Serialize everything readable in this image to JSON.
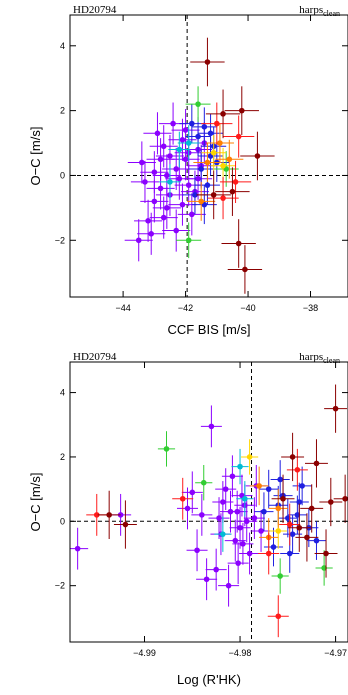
{
  "chart_data": [
    {
      "type": "scatter",
      "corner_left": "HD20794",
      "corner_right_main": "harps",
      "corner_right_sub": "clean",
      "xlabel": "CCF BIS [m/s]",
      "ylabel": "O−C [m/s]",
      "xlim": [
        -45.7,
        -36.8
      ],
      "ylim": [
        -3.75,
        4.95
      ],
      "xticks": [
        -44,
        -42,
        -40,
        -38
      ],
      "xtick_labels": [
        "−44",
        "−42",
        "−40",
        "−38"
      ],
      "yticks": [
        -2,
        0,
        2,
        4
      ],
      "ytick_labels": [
        "−2",
        "0",
        "2",
        "4"
      ],
      "vline": -41.95,
      "hline": 0,
      "grid": false,
      "legend": "none",
      "series": [
        {
          "color": "#8b00ff",
          "xerr": 0.45,
          "yerr": 0.65,
          "points": [
            [
              -42.3,
              0.2
            ],
            [
              -42.8,
              0.5
            ],
            [
              -41.9,
              -0.3
            ],
            [
              -42.5,
              -0.6
            ],
            [
              -43.0,
              0.1
            ],
            [
              -41.6,
              0.8
            ],
            [
              -42.1,
              1.1
            ],
            [
              -42.6,
              -1.0
            ],
            [
              -43.2,
              -1.4
            ],
            [
              -41.8,
              -1.2
            ],
            [
              -42.9,
              1.3
            ],
            [
              -42.2,
              -0.1
            ],
            [
              -41.5,
              0.3
            ],
            [
              -42.7,
              0.9
            ],
            [
              -43.4,
              0.4
            ],
            [
              -42.0,
              0.5
            ],
            [
              -41.7,
              -0.5
            ],
            [
              -42.4,
              1.6
            ],
            [
              -43.0,
              -0.8
            ],
            [
              -42.3,
              -1.7
            ],
            [
              -42.6,
              0.0
            ],
            [
              -41.9,
              0.7
            ],
            [
              -43.3,
              -0.2
            ],
            [
              -42.1,
              -0.9
            ],
            [
              -42.8,
              -0.4
            ],
            [
              -41.6,
              -0.1
            ],
            [
              -42.5,
              0.6
            ],
            [
              -43.5,
              -2.0
            ],
            [
              -43.1,
              -1.8
            ],
            [
              -41.4,
              1.0
            ],
            [
              -42.0,
              1.4
            ],
            [
              -42.7,
              -1.3
            ]
          ]
        },
        {
          "color": "#1f1fe0",
          "xerr": 0.4,
          "yerr": 0.6,
          "points": [
            [
              -41.4,
              1.5
            ],
            [
              -41.6,
              1.2
            ],
            [
              -41.2,
              0.6
            ],
            [
              -41.5,
              0.2
            ],
            [
              -41.3,
              -0.3
            ],
            [
              -41.7,
              -0.6
            ],
            [
              -41.1,
              0.9
            ],
            [
              -41.8,
              1.6
            ],
            [
              -41.0,
              0.4
            ],
            [
              -41.4,
              -0.9
            ],
            [
              -41.2,
              1.3
            ]
          ]
        },
        {
          "color": "#00bcd4",
          "xerr": 0.35,
          "yerr": 0.55,
          "points": [
            [
              -42.2,
              0.8
            ],
            [
              -41.9,
              1.0
            ],
            [
              -42.5,
              -0.2
            ]
          ]
        },
        {
          "color": "#32cd32",
          "xerr": 0.4,
          "yerr": 0.55,
          "points": [
            [
              -41.6,
              2.2
            ],
            [
              -40.7,
              0.2
            ],
            [
              -41.9,
              -2.0
            ]
          ]
        },
        {
          "color": "#ffd700",
          "xerr": 0.4,
          "yerr": 0.55,
          "points": [
            [
              -41.1,
              0.7
            ],
            [
              -40.8,
              0.3
            ]
          ]
        },
        {
          "color": "#ff7f00",
          "xerr": 0.45,
          "yerr": 0.6,
          "points": [
            [
              -41.3,
              0.4
            ],
            [
              -40.9,
              1.0
            ],
            [
              -41.5,
              -0.8
            ],
            [
              -40.6,
              0.5
            ]
          ]
        },
        {
          "color": "#ff1a1a",
          "xerr": 0.5,
          "yerr": 0.65,
          "points": [
            [
              -41.0,
              1.6
            ],
            [
              -40.4,
              -0.2
            ],
            [
              -40.8,
              -0.7
            ],
            [
              -40.3,
              1.2
            ]
          ]
        },
        {
          "color": "#8b0000",
          "xerr": 0.55,
          "yerr": 0.75,
          "points": [
            [
              -41.3,
              3.5
            ],
            [
              -40.8,
              1.9
            ],
            [
              -40.2,
              2.0
            ],
            [
              -39.7,
              0.6
            ],
            [
              -40.5,
              -0.5
            ],
            [
              -40.3,
              -2.1
            ],
            [
              -40.1,
              -2.9
            ],
            [
              -41.1,
              -0.6
            ]
          ]
        }
      ]
    },
    {
      "type": "scatter",
      "corner_left": "HD20794",
      "corner_right_main": "harps",
      "corner_right_sub": "clean",
      "xlabel": "Log (R'HK)",
      "ylabel": "O−C [m/s]",
      "xlim": [
        -4.9978,
        -4.9687
      ],
      "ylim": [
        -3.75,
        4.95
      ],
      "xticks": [
        -4.99,
        -4.98,
        -4.97
      ],
      "xtick_labels": [
        "−4.99",
        "−4.98",
        "−4.97"
      ],
      "yticks": [
        -2,
        0,
        2,
        4
      ],
      "ytick_labels": [
        "−2",
        "0",
        "2",
        "4"
      ],
      "vline": -4.9788,
      "hline": 0,
      "grid": false,
      "legend": "none",
      "series": [
        {
          "color": "#8b00ff",
          "xerr": 0.0011,
          "yerr": 0.65,
          "points": [
            [
              -4.997,
              -0.85
            ],
            [
              -4.9925,
              0.2
            ],
            [
              -4.983,
              2.95
            ],
            [
              -4.981,
              0.3
            ],
            [
              -4.98,
              -0.2
            ],
            [
              -4.9795,
              0.5
            ],
            [
              -4.9805,
              -0.6
            ],
            [
              -4.9815,
              1.0
            ],
            [
              -4.979,
              -1.0
            ],
            [
              -4.9785,
              0.1
            ],
            [
              -4.982,
              -0.4
            ],
            [
              -4.9798,
              0.8
            ],
            [
              -4.9778,
              -0.3
            ],
            [
              -4.9808,
              1.4
            ],
            [
              -4.9825,
              -1.5
            ],
            [
              -4.9812,
              -2.0
            ],
            [
              -4.9835,
              -1.8
            ],
            [
              -4.984,
              0.2
            ],
            [
              -4.985,
              0.9
            ],
            [
              -4.9845,
              -0.9
            ],
            [
              -4.9855,
              0.4
            ],
            [
              -4.9802,
              -1.3
            ],
            [
              -4.9793,
              0.0
            ],
            [
              -4.9783,
              1.1
            ],
            [
              -4.9818,
              0.6
            ],
            [
              -4.9803,
              0.3
            ],
            [
              -4.9797,
              -0.7
            ],
            [
              -4.9822,
              0.1
            ]
          ]
        },
        {
          "color": "#1f1fe0",
          "xerr": 0.001,
          "yerr": 0.6,
          "points": [
            [
              -4.977,
              1.0
            ],
            [
              -4.976,
              0.5
            ],
            [
              -4.975,
              0.1
            ],
            [
              -4.9745,
              -0.4
            ],
            [
              -4.9735,
              1.1
            ],
            [
              -4.9765,
              -0.8
            ],
            [
              -4.9755,
              0.8
            ],
            [
              -4.974,
              0.2
            ],
            [
              -4.9728,
              -0.2
            ],
            [
              -4.9775,
              0.3
            ],
            [
              -4.9758,
              1.3
            ],
            [
              -4.9748,
              -1.0
            ],
            [
              -4.9738,
              0.6
            ],
            [
              -4.972,
              -0.6
            ]
          ]
        },
        {
          "color": "#00bcd4",
          "xerr": 0.0009,
          "yerr": 0.55,
          "points": [
            [
              -4.9818,
              -0.4
            ],
            [
              -4.98,
              1.7
            ],
            [
              -4.9795,
              0.7
            ]
          ]
        },
        {
          "color": "#32cd32",
          "xerr": 0.0009,
          "yerr": 0.55,
          "points": [
            [
              -4.9877,
              2.25
            ],
            [
              -4.9838,
              1.2
            ],
            [
              -4.9712,
              -1.45
            ],
            [
              -4.9758,
              -1.7
            ]
          ]
        },
        {
          "color": "#ffd700",
          "xerr": 0.0009,
          "yerr": 0.55,
          "points": [
            [
              -4.979,
              2.0
            ],
            [
              -4.976,
              -0.3
            ]
          ]
        },
        {
          "color": "#ff7f00",
          "xerr": 0.001,
          "yerr": 0.6,
          "points": [
            [
              -4.978,
              1.1
            ],
            [
              -4.977,
              -0.5
            ],
            [
              -4.976,
              0.4
            ]
          ]
        },
        {
          "color": "#ff1a1a",
          "xerr": 0.0011,
          "yerr": 0.65,
          "points": [
            [
              -4.995,
              0.2
            ],
            [
              -4.986,
              0.7
            ],
            [
              -4.977,
              -1.0
            ],
            [
              -4.9748,
              -0.1
            ],
            [
              -4.976,
              -2.95
            ],
            [
              -4.974,
              1.6
            ]
          ]
        },
        {
          "color": "#8b0000",
          "xerr": 0.0012,
          "yerr": 0.75,
          "points": [
            [
              -4.9937,
              0.2
            ],
            [
              -4.992,
              -0.1
            ],
            [
              -4.97,
              3.5
            ],
            [
              -4.972,
              1.8
            ],
            [
              -4.9745,
              2.0
            ],
            [
              -4.9705,
              0.6
            ],
            [
              -4.973,
              -0.5
            ],
            [
              -4.971,
              -1.0
            ],
            [
              -4.969,
              0.7
            ],
            [
              -4.9755,
              0.7
            ],
            [
              -4.9738,
              -0.2
            ],
            [
              -4.9725,
              0.4
            ]
          ]
        }
      ]
    }
  ]
}
